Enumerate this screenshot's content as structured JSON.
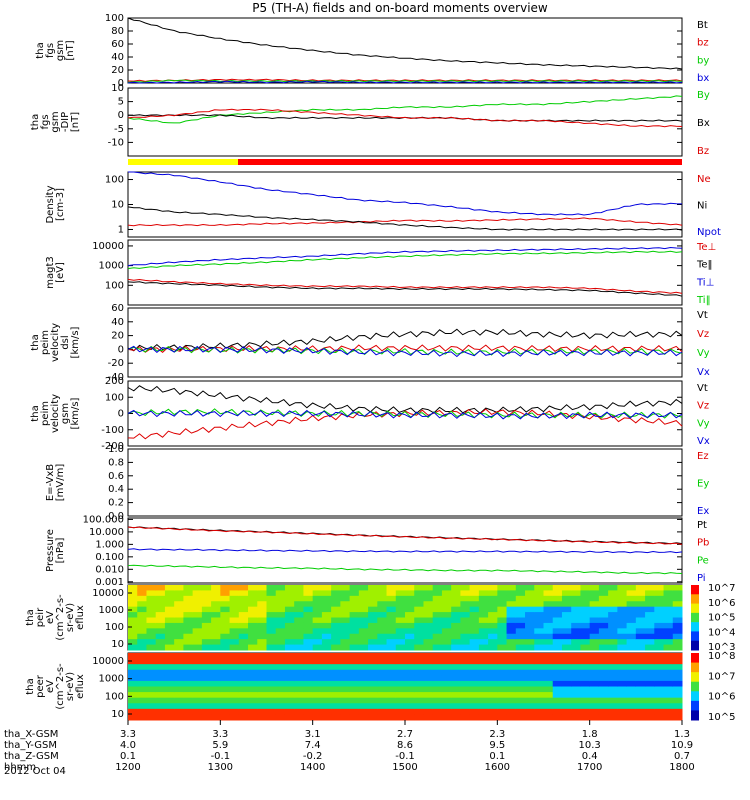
{
  "figure": {
    "title": "P5 (TH-A) fields and on-board moments overview",
    "date_label": "2012 Oct 04"
  },
  "chart_data": [
    {
      "type": "line",
      "id": "p1",
      "ylabel": [
        "tha",
        "fgs",
        "gsm",
        "[nT]"
      ],
      "ylim": [
        0,
        100
      ],
      "ticks": [
        100,
        80,
        60,
        40,
        20,
        0
      ],
      "series": [
        {
          "name": "Bt",
          "color": "#000000",
          "values": [
            100,
            80,
            68,
            58,
            50,
            43,
            38,
            34,
            31,
            28,
            26,
            24,
            22
          ]
        },
        {
          "name": "bz",
          "color": "#dd0000",
          "values": [
            3,
            4,
            5,
            5,
            4,
            4,
            4,
            4,
            4,
            4,
            4,
            4,
            4
          ]
        },
        {
          "name": "by",
          "color": "#00cc00",
          "values": [
            1,
            4,
            3,
            3,
            3,
            3,
            3,
            3,
            3,
            3,
            3,
            3,
            3
          ]
        },
        {
          "name": "bx",
          "color": "#0000dd",
          "values": [
            0,
            1,
            2,
            1,
            2,
            1,
            1,
            1,
            1,
            1,
            1,
            1,
            1
          ]
        }
      ]
    },
    {
      "type": "line",
      "id": "p2",
      "ylabel": [
        "tha",
        "fgs",
        "gsm",
        "-DIP",
        "[nT]"
      ],
      "ylim": [
        -15,
        10
      ],
      "ticks": [
        10,
        5,
        0,
        -5,
        -10
      ],
      "series": [
        {
          "name": "By",
          "color": "#00cc00",
          "values": [
            -1,
            -3,
            0,
            1,
            2,
            2,
            3,
            3,
            4,
            4,
            5,
            6,
            7
          ]
        },
        {
          "name": "Bx",
          "color": "#000000",
          "values": [
            0,
            0,
            0,
            -1,
            -1,
            -1,
            -1,
            -1,
            -2,
            -2,
            -2,
            -2,
            -2
          ]
        },
        {
          "name": "Bz",
          "color": "#dd0000",
          "values": [
            -1,
            0,
            2,
            2,
            1,
            0,
            -1,
            -1,
            -2,
            -2,
            -3,
            -4,
            -4
          ]
        }
      ]
    },
    {
      "type": "line",
      "id": "p3",
      "ylabel": [
        "Density",
        "[cm-3]"
      ],
      "scale": "log",
      "ylim": [
        0.5,
        200
      ],
      "ticks": [
        "100",
        "10",
        "1"
      ],
      "series": [
        {
          "name": "Ne",
          "color": "#dd0000",
          "values": [
            1.5,
            1.5,
            1.5,
            1.7,
            1.8,
            2,
            2.3,
            2.2,
            2.4,
            2.6,
            2.8,
            2,
            1.5
          ]
        },
        {
          "name": "Ni",
          "color": "#000000",
          "values": [
            8,
            5,
            4,
            3,
            2.5,
            2,
            1.5,
            1.2,
            1,
            1,
            1,
            1,
            1
          ]
        },
        {
          "name": "Npot",
          "color": "#0000dd",
          "values": [
            200,
            150,
            80,
            40,
            25,
            15,
            12,
            8,
            5,
            4,
            4,
            10,
            11
          ]
        }
      ]
    },
    {
      "type": "line",
      "id": "p4",
      "ylabel": [
        "magt3",
        "[eV]"
      ],
      "scale": "log",
      "ylim": [
        10,
        20000
      ],
      "ticks": [
        "10000",
        "1000",
        "100"
      ],
      "series": [
        {
          "name": "Te⊥",
          "color": "#dd0000",
          "values": [
            200,
            150,
            120,
            100,
            90,
            90,
            80,
            80,
            80,
            80,
            70,
            50,
            40
          ]
        },
        {
          "name": "Te‖",
          "color": "#000000",
          "values": [
            150,
            120,
            100,
            80,
            70,
            70,
            65,
            65,
            65,
            60,
            55,
            40,
            30
          ]
        },
        {
          "name": "Ti⊥",
          "color": "#0000dd",
          "values": [
            1000,
            1500,
            2000,
            2500,
            3000,
            4000,
            5000,
            5500,
            6000,
            6500,
            7000,
            7500,
            8000
          ]
        },
        {
          "name": "Ti‖",
          "color": "#00cc00",
          "values": [
            700,
            1000,
            1200,
            1500,
            2000,
            2500,
            3000,
            3500,
            4000,
            4200,
            4500,
            5000,
            5000
          ]
        }
      ]
    },
    {
      "type": "line",
      "id": "p5",
      "ylabel": [
        "tha",
        "peim",
        "velocity",
        "dsl",
        "[km/s]"
      ],
      "ylim": [
        -40,
        60
      ],
      "ticks": [
        60,
        40,
        20,
        0,
        -20,
        -40
      ],
      "series": [
        {
          "name": "Vt",
          "color": "#000000",
          "values": [
            2,
            3,
            5,
            8,
            12,
            18,
            22,
            25,
            25,
            22,
            20,
            22,
            22
          ]
        },
        {
          "name": "Vz",
          "color": "#dd0000",
          "values": [
            0,
            0,
            1,
            1,
            1,
            2,
            2,
            2,
            2,
            1,
            1,
            1,
            1
          ]
        },
        {
          "name": "Vy",
          "color": "#00cc00",
          "values": [
            0,
            0,
            -1,
            -1,
            -2,
            -3,
            -3,
            -4,
            -4,
            -3,
            -3,
            -3,
            -3
          ]
        },
        {
          "name": "Vx",
          "color": "#0000dd",
          "values": [
            0,
            0,
            0,
            -1,
            -2,
            -4,
            -5,
            -6,
            -6,
            -5,
            -5,
            -5,
            -5
          ]
        }
      ]
    },
    {
      "type": "line",
      "id": "p6",
      "ylabel": [
        "tha",
        "peim",
        "velocity",
        "gsm",
        "[km/s]"
      ],
      "ylim": [
        -200,
        200
      ],
      "ticks": [
        200,
        100,
        0,
        -100,
        -200
      ],
      "series": [
        {
          "name": "Vt",
          "color": "#000000",
          "values": [
            160,
            140,
            110,
            80,
            50,
            30,
            20,
            20,
            20,
            30,
            40,
            60,
            70
          ]
        },
        {
          "name": "Vz",
          "color": "#dd0000",
          "values": [
            -150,
            -120,
            -90,
            -60,
            -30,
            -10,
            0,
            5,
            10,
            0,
            -20,
            -40,
            -60
          ]
        },
        {
          "name": "Vy",
          "color": "#00cc00",
          "values": [
            0,
            10,
            10,
            5,
            0,
            0,
            -5,
            -5,
            -10,
            -10,
            -10,
            -10,
            -10
          ]
        },
        {
          "name": "Vx",
          "color": "#0000dd",
          "values": [
            0,
            0,
            0,
            0,
            0,
            -5,
            -10,
            -10,
            -15,
            -15,
            -10,
            -10,
            -10
          ]
        }
      ]
    },
    {
      "type": "line",
      "id": "p7",
      "ylabel": [
        "E=-VxB",
        "[mV/m]"
      ],
      "ylim": [
        0,
        1
      ],
      "ticks": [
        "1.0",
        "0.8",
        "0.6",
        "0.4",
        "0.2",
        "0.0"
      ],
      "series": [
        {
          "name": "Ez",
          "color": "#dd0000",
          "values": []
        },
        {
          "name": "Ey",
          "color": "#00cc00",
          "values": []
        },
        {
          "name": "Ex",
          "color": "#0000dd",
          "values": []
        }
      ]
    },
    {
      "type": "line",
      "id": "p8",
      "ylabel": [
        "Pressure",
        "[nPa]"
      ],
      "scale": "log",
      "ylim": [
        0.0008,
        130
      ],
      "ticks": [
        "100.000",
        "10.000",
        "1.000",
        "0.100",
        "0.010",
        "0.001"
      ],
      "series": [
        {
          "name": "Pt",
          "color": "#000000",
          "values": [
            25,
            18,
            13,
            10,
            7.5,
            5.5,
            4.2,
            3.3,
            2.6,
            2.1,
            1.7,
            1.4,
            1.2
          ]
        },
        {
          "name": "Pb",
          "color": "#dd0000",
          "values": [
            24,
            17,
            12,
            9.5,
            7,
            5.2,
            4,
            3.1,
            2.5,
            2,
            1.6,
            1.3,
            1.1
          ]
        },
        {
          "name": "Pe",
          "color": "#00cc00",
          "values": [
            0.02,
            0.018,
            0.015,
            0.013,
            0.012,
            0.01,
            0.009,
            0.008,
            0.008,
            0.007,
            0.006,
            0.005,
            0.005
          ]
        },
        {
          "name": "Pi",
          "color": "#0000dd",
          "values": [
            0.4,
            0.38,
            0.35,
            0.32,
            0.3,
            0.28,
            0.27,
            0.27,
            0.27,
            0.26,
            0.25,
            0.24,
            0.24
          ]
        }
      ]
    },
    {
      "type": "heatmap",
      "id": "p9",
      "ylabel": [
        "tha",
        "peir",
        "eV",
        "(cm^2-s-",
        "sr-eV)",
        "eflux"
      ],
      "ticks": [
        "10000",
        "1000",
        "100",
        "10"
      ],
      "colorbar": [
        "10^7",
        "10^6",
        "10^5",
        "10^4",
        "10^3"
      ]
    },
    {
      "type": "heatmap",
      "id": "p10",
      "ylabel": [
        "tha",
        "peer",
        "eV",
        "(cm^2-s-",
        "sr-eV)",
        "eflux"
      ],
      "ticks": [
        "10000",
        "1000",
        "100",
        "10"
      ],
      "colorbar": [
        "10^8",
        "10^7",
        "10^6",
        "10^5"
      ]
    }
  ],
  "xaxis": {
    "row_labels": [
      "tha_X-GSM",
      "tha_Y-GSM",
      "tha_Z-GSM",
      "hhmm"
    ],
    "columns": [
      [
        "3.3",
        "4.0",
        "0.1",
        "1200"
      ],
      [
        "3.3",
        "5.9",
        "-0.1",
        "1300"
      ],
      [
        "3.1",
        "7.4",
        "-0.2",
        "1400"
      ],
      [
        "2.7",
        "8.6",
        "-0.1",
        "1500"
      ],
      [
        "2.3",
        "9.5",
        "0.1",
        "1600"
      ],
      [
        "1.8",
        "10.3",
        "0.4",
        "1700"
      ],
      [
        "1.3",
        "10.9",
        "0.7",
        "1800"
      ]
    ]
  }
}
